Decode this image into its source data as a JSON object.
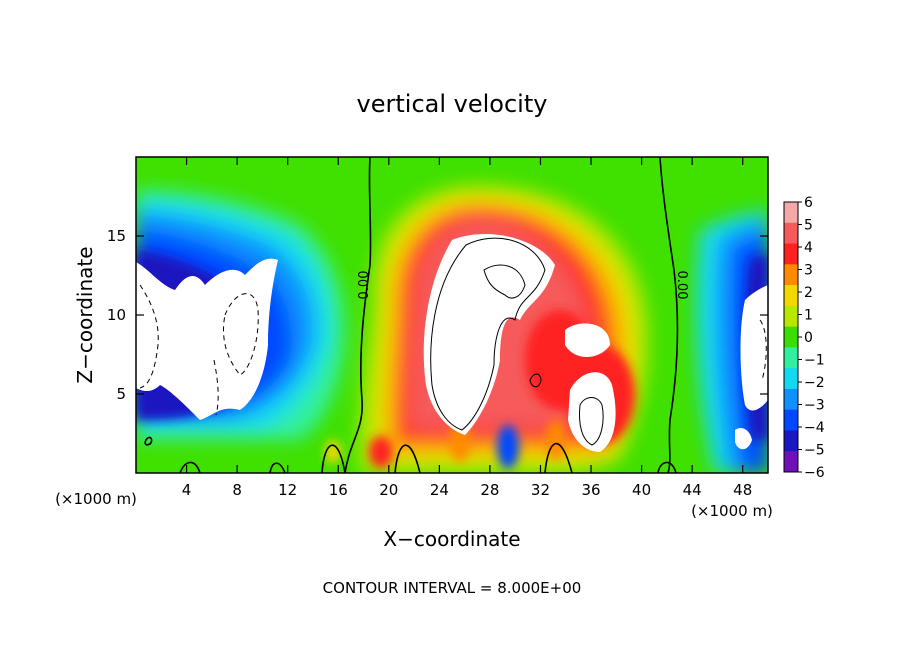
{
  "chart_data": {
    "type": "heatmap",
    "title": "vertical velocity",
    "xlabel": "X−coordinate",
    "ylabel": "Z−coordinate",
    "x_unit_left": "(×1000 m)",
    "x_unit_right": "(×1000 m)",
    "xlim": [
      0,
      50
    ],
    "ylim": [
      0,
      20
    ],
    "xticks": [
      4,
      8,
      12,
      16,
      20,
      24,
      28,
      32,
      36,
      40,
      44,
      48
    ],
    "yticks": [
      5,
      10,
      15
    ],
    "colorbar": {
      "ticks": [
        6,
        5,
        4,
        3,
        2,
        1,
        0,
        -1,
        -2,
        -3,
        -4,
        -5,
        -6
      ],
      "tick_labels": [
        "6",
        "5",
        "4",
        "3",
        "2",
        "1",
        "0",
        "−1",
        "−2",
        "−3",
        "−4",
        "−5",
        "−6"
      ],
      "colors": [
        "#f4a8a8",
        "#f65a5a",
        "#ff2020",
        "#ff8a00",
        "#f3d800",
        "#b8e800",
        "#3ade00",
        "#30f0a0",
        "#12d9f0",
        "#108fff",
        "#0048ff",
        "#1a18c0",
        "#7010b8"
      ],
      "range": [
        -6,
        6
      ]
    },
    "contour_labels": [
      {
        "text": "0.00",
        "x": 18.2,
        "y": 11.5
      },
      {
        "text": "0.00",
        "x": 43.3,
        "y": 11.8
      }
    ],
    "annotation": "CONTOUR INTERVAL = 8.000E+00"
  }
}
